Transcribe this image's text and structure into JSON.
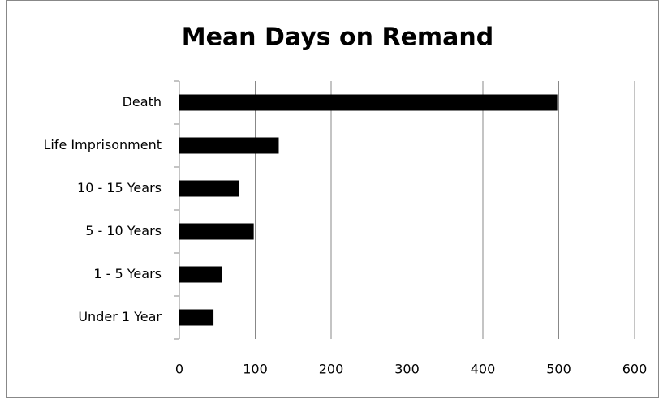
{
  "chart_data": {
    "type": "bar",
    "orientation": "horizontal",
    "title": "Mean Days on Remand",
    "categories": [
      "Death",
      "Life Imprisonment",
      "10 - 15 Years",
      "5 - 10 Years",
      "1 - 5 Years",
      "Under 1 Year"
    ],
    "values": [
      498,
      131,
      79,
      98,
      56,
      45
    ],
    "color": "#000000",
    "xlim": [
      0,
      600
    ],
    "xticks": [
      0,
      100,
      200,
      300,
      400,
      500,
      600
    ],
    "grid": true
  }
}
